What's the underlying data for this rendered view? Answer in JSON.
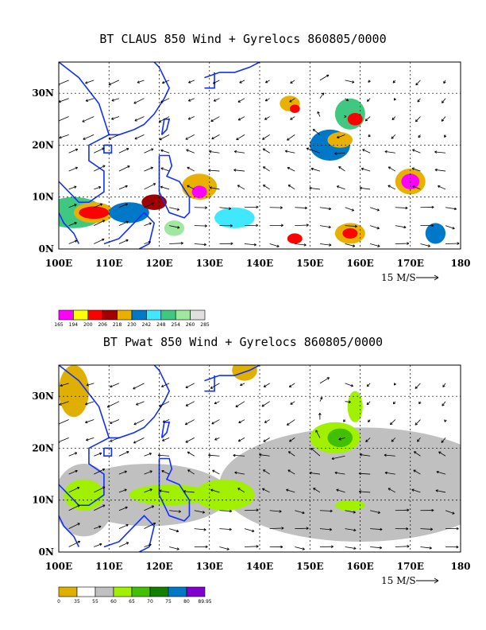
{
  "chart_data": [
    {
      "type": "heatmap",
      "title": "BT CLAUS 850 Wind + Gyrelocs 860805/0000",
      "x_ticks": [
        "100E",
        "110E",
        "120E",
        "130E",
        "140E",
        "150E",
        "160E",
        "170E",
        "180"
      ],
      "y_ticks": [
        "0N",
        "10N",
        "20N",
        "30N"
      ],
      "xlim": [
        100,
        180
      ],
      "ylim": [
        0,
        36
      ],
      "grid": true,
      "vector_reference": "15 M/S",
      "colorbar": {
        "labels": [
          "165",
          "194",
          "200",
          "206",
          "218",
          "230",
          "242",
          "248",
          "254",
          "260",
          "285"
        ],
        "colors": [
          "#ff00ff",
          "#ffff00",
          "#ff0000",
          "#a00000",
          "#e8b000",
          "#0078c8",
          "#40e8ff",
          "#40c880",
          "#a0e8a0",
          "#e0e0e0"
        ]
      }
    },
    {
      "type": "heatmap",
      "title": "BT Pwat 850 Wind + Gyrelocs 860805/0000",
      "x_ticks": [
        "100E",
        "110E",
        "120E",
        "130E",
        "140E",
        "150E",
        "160E",
        "170E",
        "180"
      ],
      "y_ticks": [
        "0N",
        "10N",
        "20N",
        "30N"
      ],
      "xlim": [
        100,
        180
      ],
      "ylim": [
        0,
        36
      ],
      "grid": true,
      "vector_reference": "15 M/S",
      "colorbar": {
        "labels": [
          "0",
          "35",
          "55",
          "60",
          "65",
          "70",
          "75",
          "80",
          "89.95"
        ],
        "colors": [
          "#e0b000",
          "#ffffff",
          "#c0c0c0",
          "#a0f000",
          "#40c000",
          "#108000",
          "#0078c8",
          "#8000d0"
        ]
      }
    }
  ]
}
